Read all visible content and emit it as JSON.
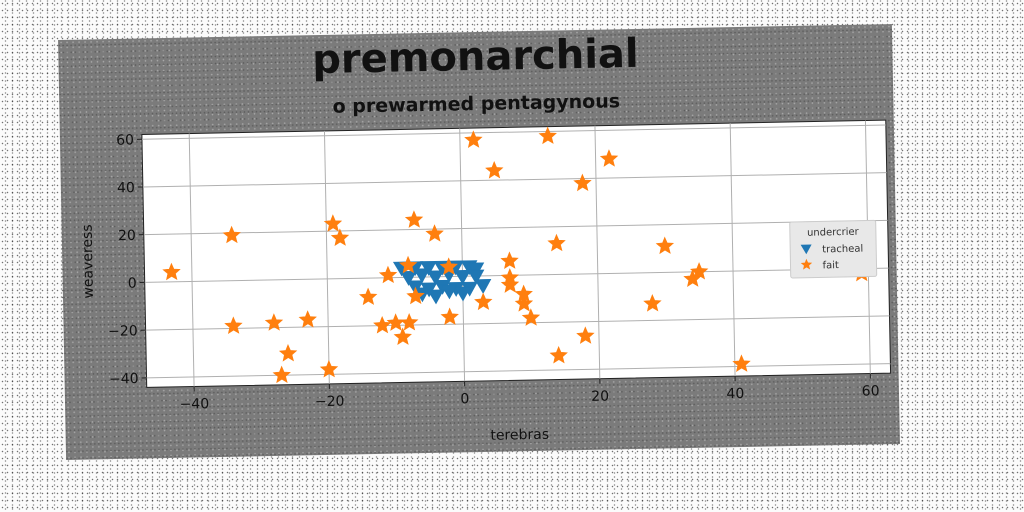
{
  "chart_data": {
    "type": "scatter",
    "title": "premonarchial",
    "subtitle": "o prewarmed pentagynous",
    "xlabel": "terebras",
    "ylabel": "weaveress",
    "xlim": [
      -47,
      63
    ],
    "ylim": [
      -44,
      62
    ],
    "xticks": [
      -40,
      -20,
      0,
      20,
      40,
      60
    ],
    "yticks": [
      -40,
      -20,
      0,
      20,
      40,
      60
    ],
    "grid": true,
    "legend": {
      "title": "undercrier",
      "placement": "center-right"
    },
    "colors": {
      "tracheal": "#1f77b4",
      "fait": "#ff7f0e"
    },
    "series": [
      {
        "name": "tracheal",
        "marker": "triangle-down",
        "points": [
          [
            -9,
            4
          ],
          [
            -7,
            4
          ],
          [
            -5,
            4
          ],
          [
            -3,
            4
          ],
          [
            -1,
            4
          ],
          [
            1,
            4
          ],
          [
            2,
            3
          ],
          [
            -8,
            0
          ],
          [
            -6,
            1
          ],
          [
            -4,
            0
          ],
          [
            -2,
            1
          ],
          [
            0,
            0
          ],
          [
            2,
            0
          ],
          [
            -7,
            -4
          ],
          [
            -5,
            -5
          ],
          [
            -3,
            -4
          ],
          [
            -1,
            -5
          ],
          [
            1,
            -5
          ],
          [
            3,
            -4
          ],
          [
            -6,
            -7
          ],
          [
            -4,
            -8
          ],
          [
            -2,
            -6
          ],
          [
            0,
            -7
          ]
        ]
      },
      {
        "name": "fait",
        "marker": "star",
        "points": [
          [
            -43,
            4
          ],
          [
            -34,
            19
          ],
          [
            -34,
            -19
          ],
          [
            -28,
            -18
          ],
          [
            -26,
            -31
          ],
          [
            -27,
            -40
          ],
          [
            -23,
            -17
          ],
          [
            -20,
            -38
          ],
          [
            -19,
            23
          ],
          [
            -18,
            17
          ],
          [
            -14,
            -8
          ],
          [
            -12,
            -20
          ],
          [
            -10,
            -19
          ],
          [
            -11,
            1
          ],
          [
            -9,
            -25
          ],
          [
            -8,
            5
          ],
          [
            -8,
            -19
          ],
          [
            -7,
            -8
          ],
          [
            -7,
            24
          ],
          [
            -4,
            18
          ],
          [
            -2,
            4
          ],
          [
            -2,
            -17
          ],
          [
            2,
            57
          ],
          [
            3,
            -11
          ],
          [
            5,
            44
          ],
          [
            7,
            6
          ],
          [
            7,
            -1
          ],
          [
            7,
            -4
          ],
          [
            9,
            -12
          ],
          [
            9,
            -8
          ],
          [
            10,
            -18
          ],
          [
            13,
            58
          ],
          [
            14,
            13
          ],
          [
            14,
            -34
          ],
          [
            18,
            38
          ],
          [
            18,
            -26
          ],
          [
            22,
            48
          ],
          [
            28,
            -13
          ],
          [
            30,
            11
          ],
          [
            34,
            -3
          ],
          [
            35,
            0
          ],
          [
            41,
            -39
          ],
          [
            59,
            -2
          ]
        ]
      }
    ]
  }
}
